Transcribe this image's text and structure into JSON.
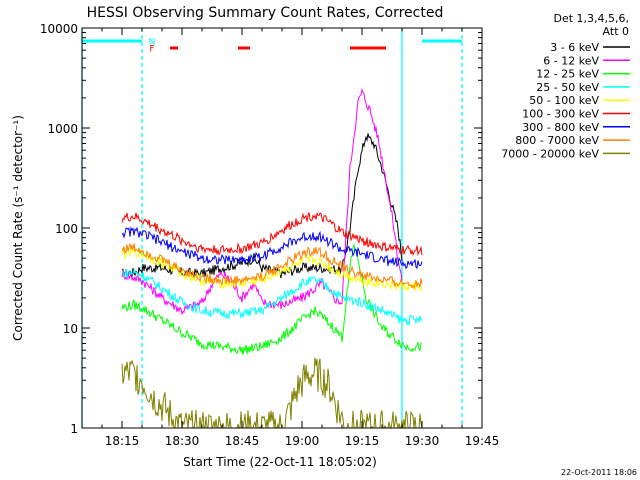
{
  "chart_data": {
    "type": "line",
    "title": "HESSI Observing Summary Count Rates, Corrected",
    "xlabel": "Start Time (22-Oct-11 18:05:02)",
    "ylabel": "Corrected Count Rate (s⁻¹ detector⁻¹)",
    "yscale": "log",
    "xlim": [
      "18:05",
      "19:45"
    ],
    "ylim": [
      1,
      10000
    ],
    "x_ticks": [
      "18:15",
      "18:30",
      "18:45",
      "19:00",
      "19:15",
      "19:30",
      "19:45"
    ],
    "y_ticks": [
      "1",
      "10",
      "100",
      "1000",
      "10000"
    ],
    "grid": false,
    "legend_position": "right",
    "legend_header": [
      "Det 1,3,4,5,6,",
      "Att 0"
    ],
    "footer_date": "22-Oct-2011 18:06",
    "flag_labels": [
      "N",
      "F"
    ],
    "data_start": "18:15",
    "data_end": "19:30",
    "series": [
      {
        "name": "3 - 6 keV",
        "color": "#000000",
        "points": [
          [
            "18:15",
            35
          ],
          [
            "18:18",
            36
          ],
          [
            "18:20",
            40
          ],
          [
            "18:25",
            40
          ],
          [
            "18:30",
            36
          ],
          [
            "18:35",
            35
          ],
          [
            "18:40",
            40
          ],
          [
            "18:45",
            45
          ],
          [
            "18:48",
            50
          ],
          [
            "18:50",
            40
          ],
          [
            "18:55",
            35
          ],
          [
            "19:00",
            40
          ],
          [
            "19:05",
            40
          ],
          [
            "19:10",
            38
          ],
          [
            "19:12",
            100
          ],
          [
            "19:14",
            400
          ],
          [
            "19:16",
            850
          ],
          [
            "19:18",
            700
          ],
          [
            "19:20",
            400
          ],
          [
            "19:22",
            200
          ],
          [
            "19:24",
            100
          ],
          [
            "19:25",
            50
          ]
        ]
      },
      {
        "name": "6 - 12 keV",
        "color": "#ff00ff",
        "points": [
          [
            "18:15",
            35
          ],
          [
            "18:18",
            32
          ],
          [
            "18:20",
            30
          ],
          [
            "18:25",
            20
          ],
          [
            "18:30",
            15
          ],
          [
            "18:35",
            18
          ],
          [
            "18:38",
            30
          ],
          [
            "18:40",
            35
          ],
          [
            "18:42",
            30
          ],
          [
            "18:45",
            20
          ],
          [
            "18:48",
            28
          ],
          [
            "18:50",
            18
          ],
          [
            "18:55",
            17
          ],
          [
            "19:00",
            20
          ],
          [
            "19:05",
            28
          ],
          [
            "19:08",
            20
          ],
          [
            "19:10",
            18
          ],
          [
            "19:12",
            400
          ],
          [
            "19:14",
            1800
          ],
          [
            "19:15",
            2300
          ],
          [
            "19:17",
            1500
          ],
          [
            "19:19",
            800
          ],
          [
            "19:21",
            300
          ],
          [
            "19:23",
            100
          ],
          [
            "19:24",
            50
          ],
          [
            "19:25",
            30
          ]
        ]
      },
      {
        "name": "12 - 25 keV",
        "color": "#00ff00",
        "points": [
          [
            "18:15",
            16
          ],
          [
            "18:18",
            17
          ],
          [
            "18:20",
            16
          ],
          [
            "18:25",
            12
          ],
          [
            "18:30",
            9
          ],
          [
            "18:35",
            7
          ],
          [
            "18:40",
            6.5
          ],
          [
            "18:45",
            6
          ],
          [
            "18:50",
            6.5
          ],
          [
            "18:55",
            8
          ],
          [
            "19:00",
            12
          ],
          [
            "19:03",
            15
          ],
          [
            "19:05",
            13
          ],
          [
            "19:08",
            10
          ],
          [
            "19:10",
            8
          ],
          [
            "19:12",
            40
          ],
          [
            "19:13",
            70
          ],
          [
            "19:14",
            50
          ],
          [
            "19:16",
            20
          ],
          [
            "19:20",
            10
          ],
          [
            "19:23",
            8
          ],
          [
            "19:26",
            6.5
          ],
          [
            "19:30",
            6.5
          ]
        ]
      },
      {
        "name": "25 - 50 keV",
        "color": "#00ffff",
        "points": [
          [
            "18:15",
            35
          ],
          [
            "18:18",
            36
          ],
          [
            "18:20",
            34
          ],
          [
            "18:25",
            25
          ],
          [
            "18:30",
            18
          ],
          [
            "18:35",
            15
          ],
          [
            "18:40",
            14
          ],
          [
            "18:45",
            14
          ],
          [
            "18:50",
            15
          ],
          [
            "18:55",
            20
          ],
          [
            "19:00",
            28
          ],
          [
            "19:03",
            30
          ],
          [
            "19:05",
            28
          ],
          [
            "19:08",
            23
          ],
          [
            "19:10",
            20
          ],
          [
            "19:15",
            18
          ],
          [
            "19:20",
            15
          ],
          [
            "19:25",
            12
          ],
          [
            "19:30",
            12
          ]
        ]
      },
      {
        "name": "50 - 100 keV",
        "color": "#ffff00",
        "points": [
          [
            "18:15",
            55
          ],
          [
            "18:18",
            58
          ],
          [
            "18:20",
            55
          ],
          [
            "18:25",
            45
          ],
          [
            "18:30",
            35
          ],
          [
            "18:35",
            30
          ],
          [
            "18:40",
            28
          ],
          [
            "18:45",
            28
          ],
          [
            "18:50",
            30
          ],
          [
            "18:55",
            38
          ],
          [
            "19:00",
            45
          ],
          [
            "19:03",
            48
          ],
          [
            "19:05",
            45
          ],
          [
            "19:08",
            38
          ],
          [
            "19:10",
            35
          ],
          [
            "19:15",
            30
          ],
          [
            "19:20",
            28
          ],
          [
            "19:25",
            26
          ],
          [
            "19:30",
            26
          ]
        ]
      },
      {
        "name": "100 - 300 keV",
        "color": "#ff0000",
        "points": [
          [
            "18:15",
            125
          ],
          [
            "18:18",
            130
          ],
          [
            "18:20",
            120
          ],
          [
            "18:25",
            95
          ],
          [
            "18:30",
            75
          ],
          [
            "18:35",
            62
          ],
          [
            "18:40",
            60
          ],
          [
            "18:45",
            62
          ],
          [
            "18:50",
            70
          ],
          [
            "18:55",
            95
          ],
          [
            "19:00",
            125
          ],
          [
            "19:03",
            135
          ],
          [
            "19:05",
            125
          ],
          [
            "19:08",
            105
          ],
          [
            "19:10",
            90
          ],
          [
            "19:15",
            75
          ],
          [
            "19:20",
            65
          ],
          [
            "19:25",
            60
          ],
          [
            "19:30",
            60
          ]
        ]
      },
      {
        "name": "300 - 800 keV",
        "color": "#0000ff",
        "points": [
          [
            "18:15",
            90
          ],
          [
            "18:18",
            92
          ],
          [
            "18:20",
            88
          ],
          [
            "18:25",
            72
          ],
          [
            "18:30",
            58
          ],
          [
            "18:35",
            50
          ],
          [
            "18:40",
            48
          ],
          [
            "18:45",
            48
          ],
          [
            "18:50",
            52
          ],
          [
            "18:55",
            65
          ],
          [
            "19:00",
            80
          ],
          [
            "19:03",
            85
          ],
          [
            "19:05",
            80
          ],
          [
            "19:08",
            68
          ],
          [
            "19:10",
            60
          ],
          [
            "19:15",
            55
          ],
          [
            "19:20",
            48
          ],
          [
            "19:25",
            44
          ],
          [
            "19:30",
            44
          ]
        ]
      },
      {
        "name": "800 - 7000 keV",
        "color": "#ff8000",
        "points": [
          [
            "18:15",
            62
          ],
          [
            "18:18",
            64
          ],
          [
            "18:20",
            60
          ],
          [
            "18:25",
            48
          ],
          [
            "18:30",
            38
          ],
          [
            "18:35",
            32
          ],
          [
            "18:40",
            30
          ],
          [
            "18:45",
            30
          ],
          [
            "18:50",
            33
          ],
          [
            "18:55",
            42
          ],
          [
            "19:00",
            55
          ],
          [
            "19:03",
            60
          ],
          [
            "19:05",
            56
          ],
          [
            "19:08",
            46
          ],
          [
            "19:10",
            40
          ],
          [
            "19:15",
            34
          ],
          [
            "19:20",
            30
          ],
          [
            "19:25",
            28
          ],
          [
            "19:30",
            28
          ]
        ]
      },
      {
        "name": "7000 - 20000 keV",
        "color": "#808000",
        "points": [
          [
            "18:15",
            3.5
          ],
          [
            "18:18",
            3.5
          ],
          [
            "18:20",
            3
          ],
          [
            "18:23",
            2
          ],
          [
            "18:26",
            1.5
          ],
          [
            "18:28",
            1.2
          ],
          [
            "18:30",
            1
          ],
          [
            "18:55",
            1
          ],
          [
            "18:57",
            1.5
          ],
          [
            "18:59",
            2.5
          ],
          [
            "19:01",
            3.2
          ],
          [
            "19:03",
            3.5
          ],
          [
            "19:05",
            3.2
          ],
          [
            "19:07",
            2.5
          ],
          [
            "19:09",
            1.5
          ],
          [
            "19:11",
            1
          ],
          [
            "19:30",
            1
          ]
        ]
      }
    ],
    "flag_bars": [
      {
        "label": "N",
        "color": "#00ffff",
        "segments": [
          [
            "18:05",
            "18:20"
          ],
          [
            "19:30",
            "19:40"
          ]
        ]
      },
      {
        "label": "F",
        "color": "#ff0000",
        "segments": [
          [
            "18:27",
            "18:29"
          ],
          [
            "18:44",
            "18:47"
          ],
          [
            "19:12",
            "19:21"
          ]
        ]
      }
    ],
    "vertical_markers": [
      {
        "x": "18:05",
        "color": "#00ffff",
        "style": "solid"
      },
      {
        "x": "18:20",
        "color": "#00ffff",
        "style": "dashed"
      },
      {
        "x": "19:25",
        "color": "#00ffff",
        "style": "solid"
      },
      {
        "x": "19:40",
        "color": "#00ffff",
        "style": "dashed"
      }
    ]
  }
}
